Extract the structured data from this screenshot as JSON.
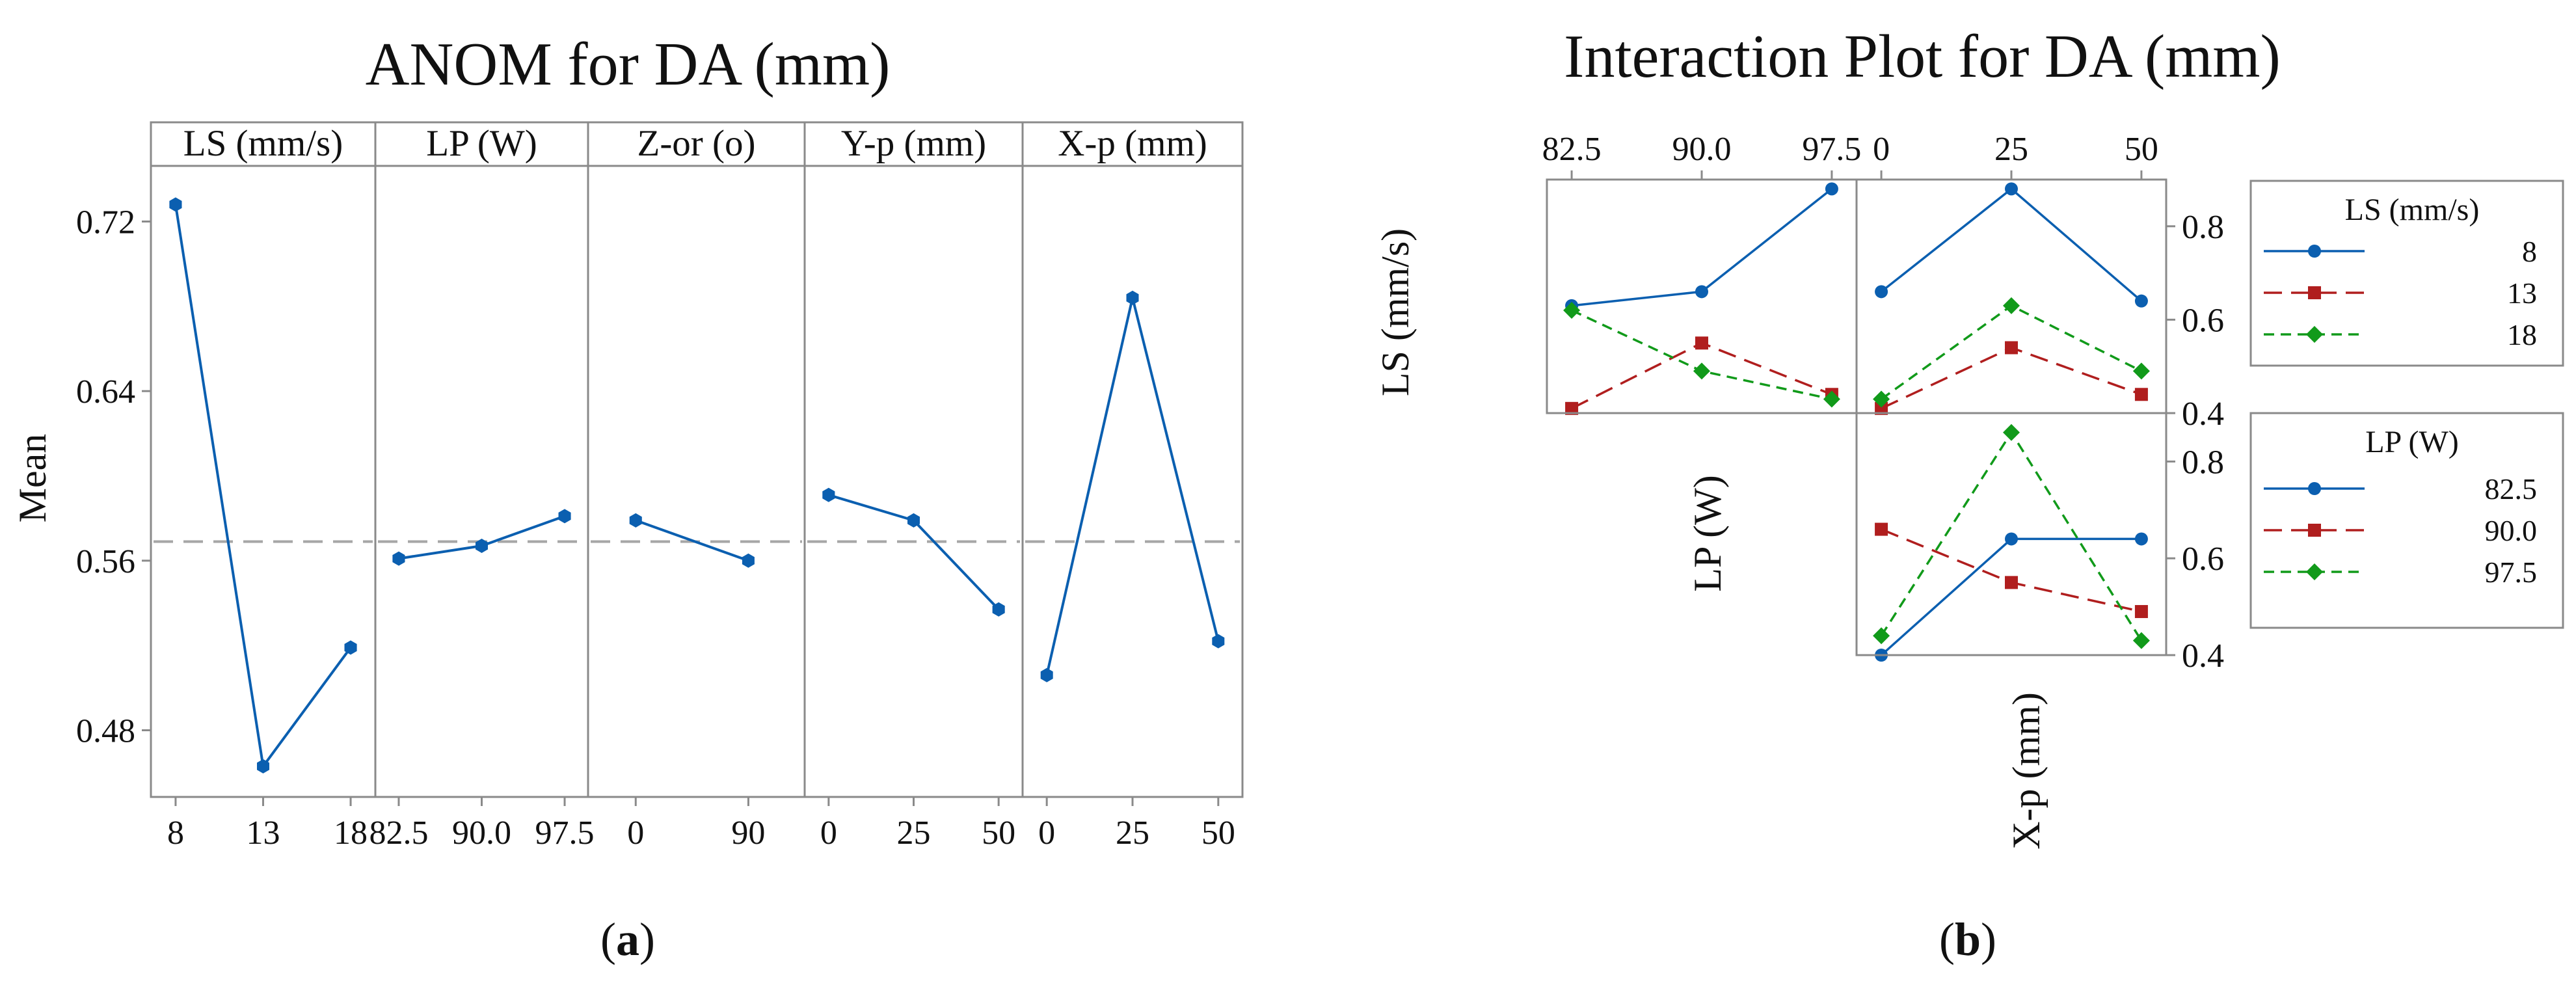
{
  "colors": {
    "blue": "#0b5fb0",
    "red": "#b01e1e",
    "green": "#119a1a",
    "frame": "#8a8a8a",
    "refline": "#a6a6a6"
  },
  "panel_a_label": {
    "open": "(",
    "letter": "a",
    "close": ")"
  },
  "panel_b_label": {
    "open": "(",
    "letter": "b",
    "close": ")"
  },
  "chart_data": [
    {
      "type": "line",
      "title": "ANOM for DA (mm)",
      "ylabel": "Mean",
      "ylim": [
        0.45,
        0.75
      ],
      "yticks": [
        "0.48",
        "0.56",
        "0.64",
        "0.72"
      ],
      "reference_line": 0.569,
      "factors": [
        {
          "name": "LS (mm/s)",
          "levels": [
            "8",
            "13",
            "18"
          ],
          "values": [
            0.728,
            0.463,
            0.519
          ]
        },
        {
          "name": "LP (W)",
          "levels": [
            "82.5",
            "90.0",
            "97.5"
          ],
          "values": [
            0.561,
            0.567,
            0.581
          ]
        },
        {
          "name": "Z-or (o)",
          "levels": [
            "0",
            "90"
          ],
          "values": [
            0.579,
            0.56
          ]
        },
        {
          "name": "Y-p (mm)",
          "levels": [
            "0",
            "25",
            "50"
          ],
          "values": [
            0.591,
            0.579,
            0.537
          ]
        },
        {
          "name": "X-p (mm)",
          "levels": [
            "0",
            "25",
            "50"
          ],
          "values": [
            0.506,
            0.684,
            0.522
          ]
        }
      ]
    },
    {
      "type": "line",
      "title": "Interaction Plot for DA (mm)",
      "row_labels": [
        "LS (mm/s)",
        "LP (W)"
      ],
      "bottom_label": "X-p (mm)",
      "top_ticks_left": [
        "82.5",
        "90.0",
        "97.5"
      ],
      "top_ticks_right": [
        "0",
        "25",
        "50"
      ],
      "y_ticks": [
        "0.4",
        "0.6",
        "0.8"
      ],
      "ylim": [
        0.4,
        0.9
      ],
      "legends": [
        {
          "title": "LS (mm/s)",
          "entries": [
            "8",
            "13",
            "18"
          ]
        },
        {
          "title": "LP (W)",
          "entries": [
            "82.5",
            "90.0",
            "97.5"
          ]
        }
      ],
      "panels": [
        {
          "name": "LS x LP",
          "x": [
            "82.5",
            "90.0",
            "97.5"
          ],
          "series": [
            {
              "name": "8",
              "values": [
                0.63,
                0.66,
                0.88
              ]
            },
            {
              "name": "13",
              "values": [
                0.41,
                0.55,
                0.44
              ]
            },
            {
              "name": "18",
              "values": [
                0.62,
                0.49,
                0.43
              ]
            }
          ]
        },
        {
          "name": "LS x X-p",
          "x": [
            "0",
            "25",
            "50"
          ],
          "series": [
            {
              "name": "8",
              "values": [
                0.66,
                0.88,
                0.64
              ]
            },
            {
              "name": "13",
              "values": [
                0.41,
                0.54,
                0.44
              ]
            },
            {
              "name": "18",
              "values": [
                0.43,
                0.63,
                0.49
              ]
            }
          ]
        },
        {
          "name": "LP x X-p",
          "x": [
            "0",
            "25",
            "50"
          ],
          "series": [
            {
              "name": "82.5",
              "values": [
                0.4,
                0.64,
                0.64
              ]
            },
            {
              "name": "90.0",
              "values": [
                0.66,
                0.55,
                0.49
              ]
            },
            {
              "name": "97.5",
              "values": [
                0.44,
                0.86,
                0.43
              ]
            }
          ]
        }
      ]
    }
  ]
}
